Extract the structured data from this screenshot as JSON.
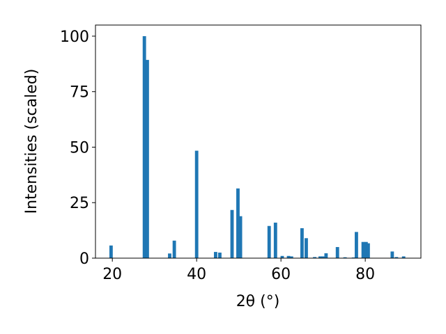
{
  "chart_data": {
    "type": "bar",
    "xlabel": "2θ (°)",
    "ylabel": "Intensities (scaled)",
    "x": [
      19.7,
      27.6,
      28.3,
      33.6,
      34.7,
      40.0,
      44.5,
      45.5,
      48.4,
      49.8,
      50.4,
      57.2,
      58.7,
      60.3,
      61.8,
      62.5,
      65.0,
      66.0,
      68.0,
      69.3,
      69.9,
      70.7,
      73.4,
      75.2,
      77.2,
      77.9,
      79.5,
      80.2,
      80.7,
      86.4,
      87.4,
      89.1
    ],
    "values": [
      5.7,
      100,
      89.3,
      2.1,
      7.9,
      48.4,
      2.8,
      2.5,
      21.7,
      31.4,
      18.9,
      14.5,
      16.0,
      1.0,
      1.0,
      0.8,
      13.5,
      9.0,
      0.5,
      0.8,
      0.8,
      2.2,
      5.0,
      0.4,
      0.3,
      11.8,
      7.3,
      7.3,
      6.7,
      3.0,
      0.5,
      0.8
    ],
    "color": "#1f77b4",
    "xlim": [
      16.0,
      93.2
    ],
    "xticks": [
      20,
      40,
      60,
      80
    ],
    "ylim": [
      0,
      105
    ],
    "yticks": [
      0,
      25,
      50,
      75,
      100
    ],
    "grid": false
  }
}
